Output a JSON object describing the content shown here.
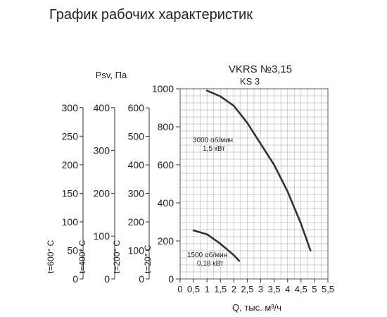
{
  "page_title": "График рабочих характеристик",
  "chart_data": {
    "type": "line",
    "title": "VKRS №3,15",
    "subtitle": "KS 3",
    "xlabel": "Q, тыс. м³/ч",
    "ylabel": "Psv, Па",
    "xlim": [
      0,
      5.5
    ],
    "ylim": [
      0,
      1000
    ],
    "grid": true,
    "x_ticks": [
      "0",
      "0,5",
      "1",
      "1,5",
      "2",
      "2,5",
      "3",
      "3,5",
      "4",
      "4,5",
      "5",
      "5,5"
    ],
    "y_ticks": [
      "0",
      "200",
      "400",
      "600",
      "800",
      "1000"
    ],
    "temperature_scales": [
      {
        "label": "t=600° C",
        "ticks": [
          "0",
          "50",
          "100",
          "150",
          "200",
          "250",
          "300"
        ],
        "max": 333
      },
      {
        "label": "t=400° C",
        "ticks": [
          "0",
          "100",
          "200",
          "300",
          "400"
        ],
        "max": 444
      },
      {
        "label": "t=200° C",
        "ticks": [
          "0",
          "100",
          "200",
          "300",
          "400",
          "500",
          "600"
        ],
        "max": 667
      },
      {
        "label": "t=20° C",
        "ticks": [
          "0",
          "200",
          "400",
          "600",
          "800",
          "1000"
        ],
        "max": 1000
      }
    ],
    "series": [
      {
        "name": "3000 об/мин\n1,5 кВт",
        "label_lines": [
          "3000 об/мин",
          "1,5 кВт"
        ],
        "x": [
          1.0,
          1.5,
          2.0,
          2.5,
          3.0,
          3.5,
          4.0,
          4.5,
          4.85
        ],
        "y": [
          990,
          960,
          910,
          820,
          710,
          600,
          460,
          290,
          150
        ]
      },
      {
        "name": "1500 об/мин\n0,18 кВт",
        "label_lines": [
          "1500 об/мин",
          "0,18 кВт"
        ],
        "x": [
          0.5,
          1.0,
          1.5,
          2.0,
          2.2
        ],
        "y": [
          255,
          235,
          185,
          125,
          95
        ]
      }
    ],
    "line_color": "#333333",
    "grid_color": "#bdbdbd"
  }
}
